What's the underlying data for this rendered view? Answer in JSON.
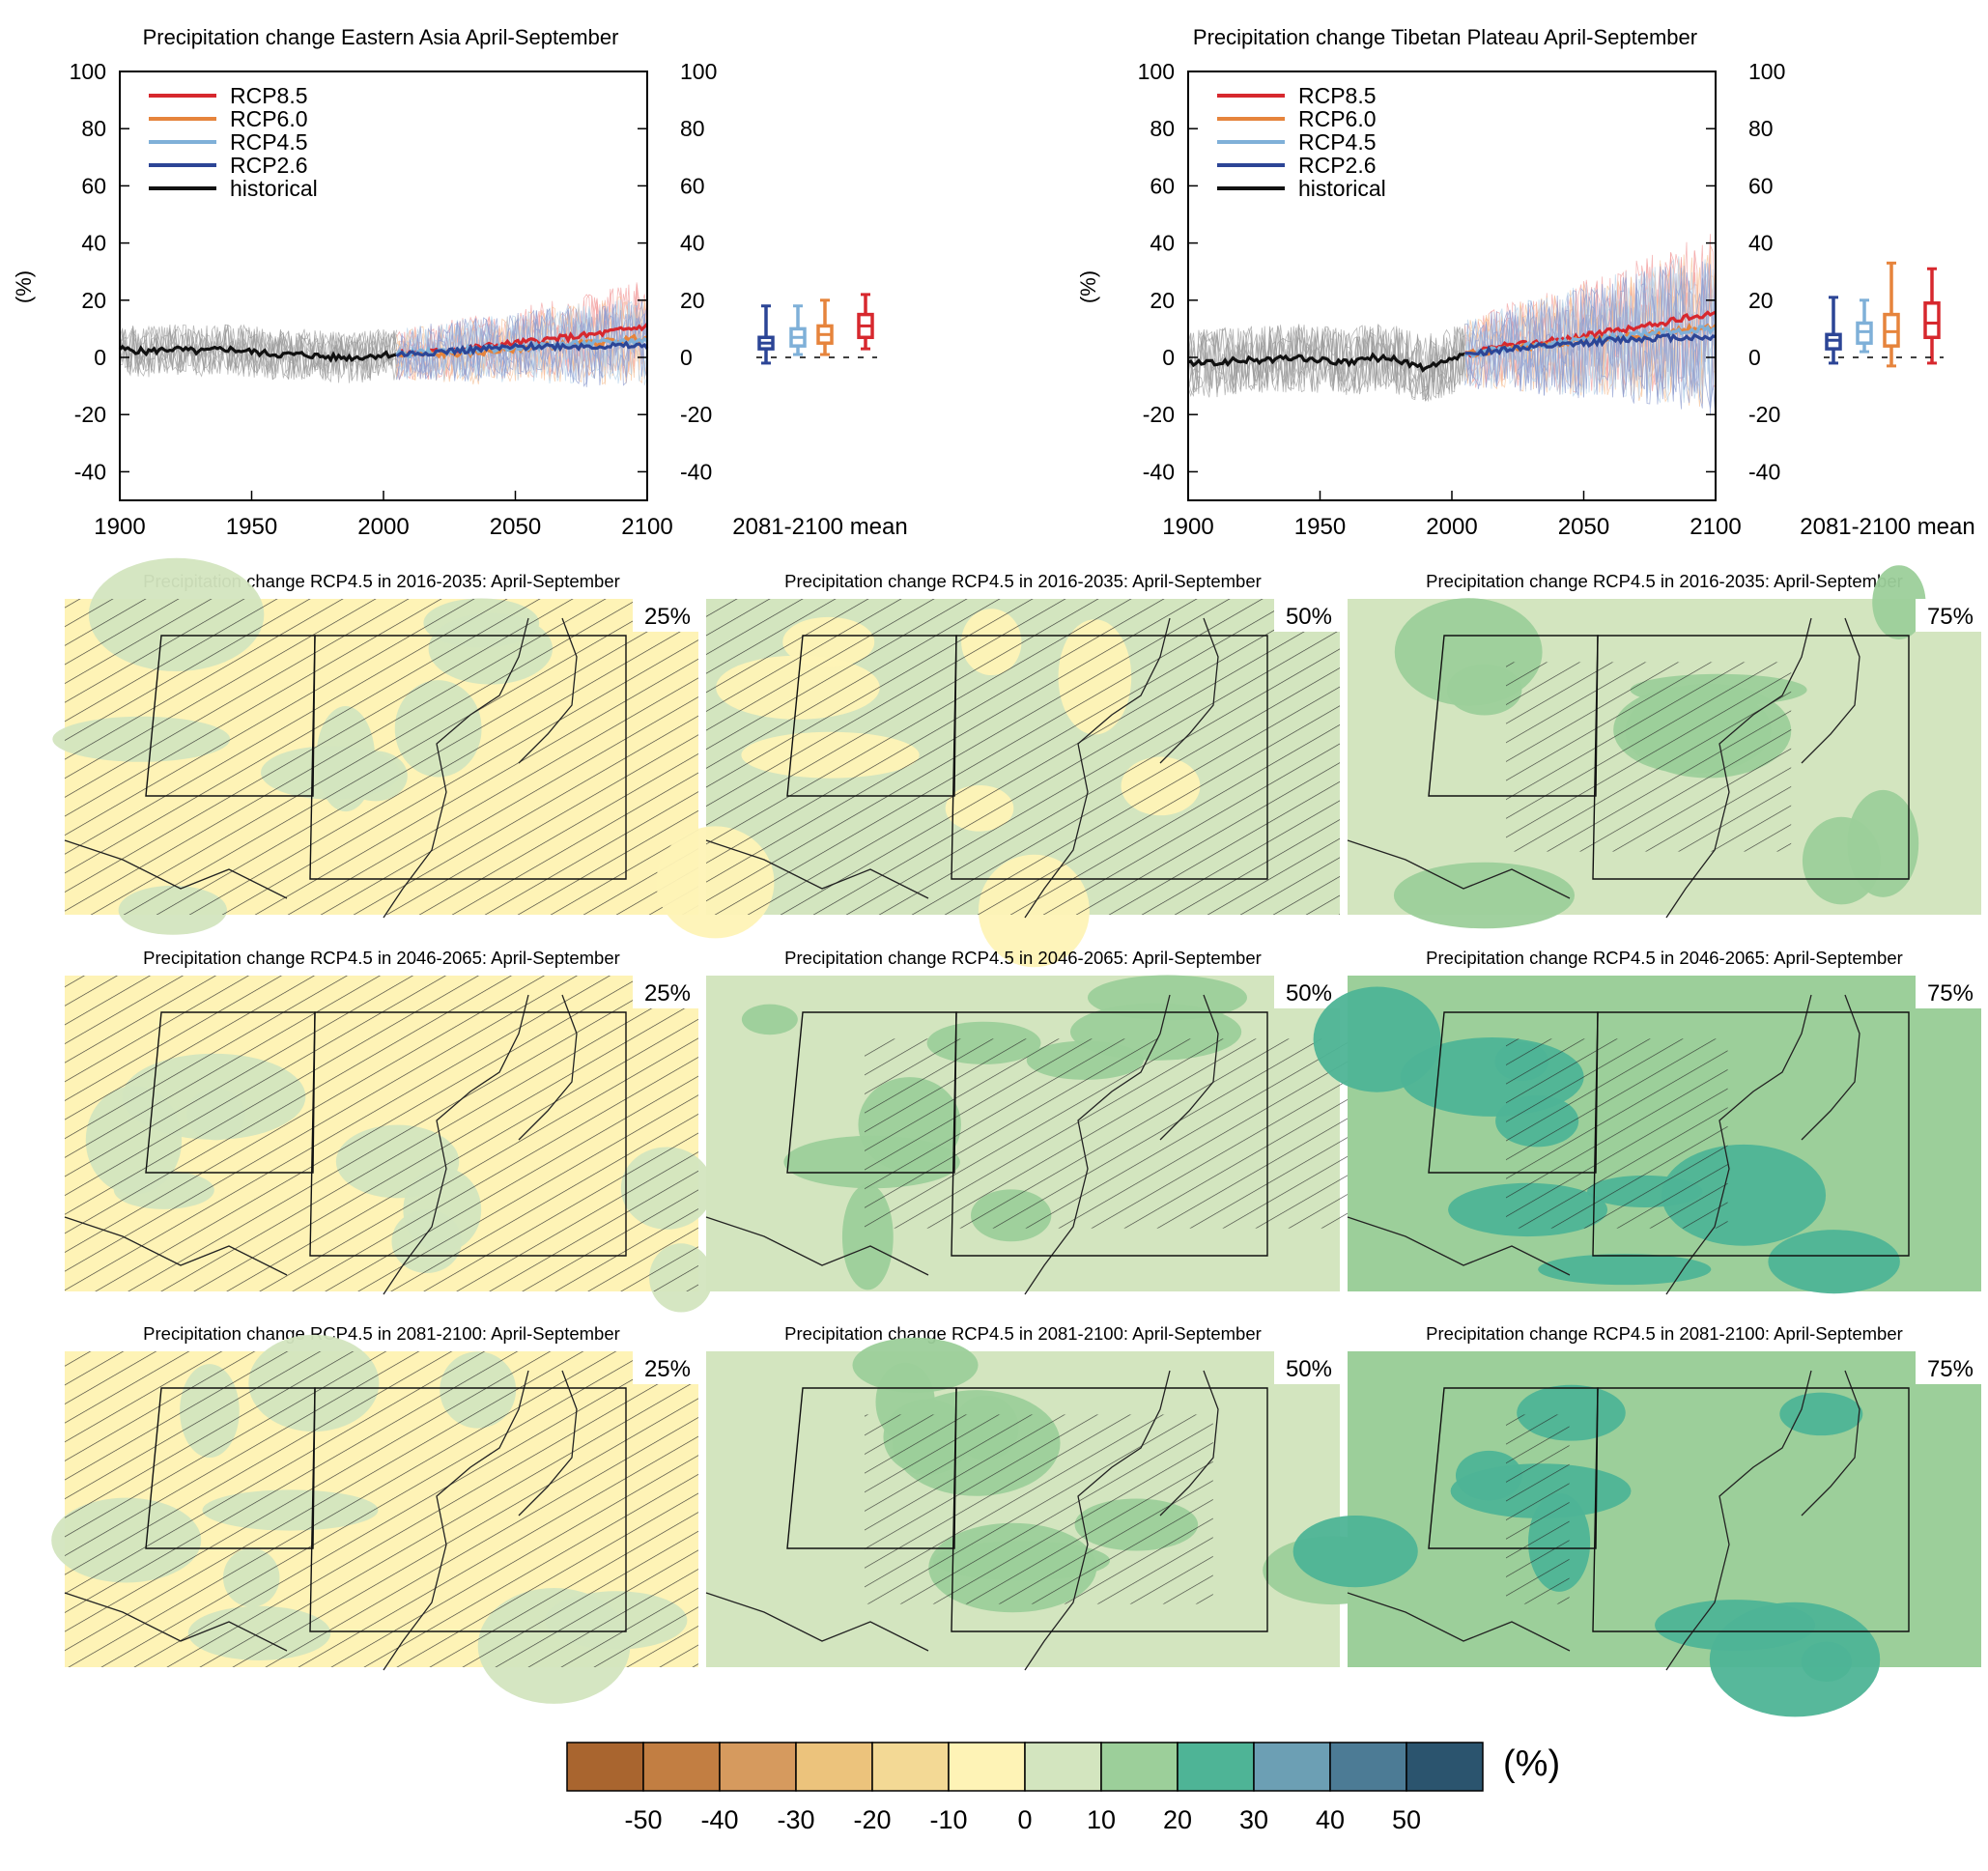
{
  "chart_data": [
    {
      "type": "line",
      "title": "Precipitation change Eastern Asia April-September",
      "ylabel": "(%)",
      "xlim": [
        1900,
        2100
      ],
      "ylim": [
        -50,
        100
      ],
      "x_ticks": [
        "1900",
        "1950",
        "2000",
        "2050",
        "2100"
      ],
      "y_ticks": [
        "100",
        "80",
        "60",
        "40",
        "20",
        "0",
        "-20",
        "-40"
      ],
      "legend": [
        "RCP8.5",
        "RCP6.0",
        "RCP4.5",
        "RCP2.6",
        "historical"
      ],
      "legend_position": "top-left",
      "box_label": "2081-2100 mean",
      "series": [
        {
          "name": "historical",
          "x": [
            1900,
            1910,
            1920,
            1930,
            1940,
            1950,
            1960,
            1970,
            1980,
            1990,
            2000,
            2005
          ],
          "values": [
            3,
            2,
            3,
            2,
            3,
            2,
            1,
            1,
            0,
            0,
            1,
            1
          ]
        },
        {
          "name": "RCP2.6",
          "x": [
            2005,
            2020,
            2040,
            2060,
            2080,
            2100
          ],
          "values": [
            1,
            2,
            3,
            4,
            4,
            4
          ]
        },
        {
          "name": "RCP4.5",
          "x": [
            2005,
            2020,
            2040,
            2060,
            2080,
            2100
          ],
          "values": [
            1,
            2,
            3,
            4,
            5,
            6
          ]
        },
        {
          "name": "RCP6.0",
          "x": [
            2005,
            2020,
            2040,
            2060,
            2080,
            2100
          ],
          "values": [
            1,
            1,
            2,
            4,
            5,
            7
          ]
        },
        {
          "name": "RCP8.5",
          "x": [
            2005,
            2020,
            2040,
            2060,
            2080,
            2100
          ],
          "values": [
            1,
            2,
            4,
            6,
            8,
            11
          ]
        }
      ],
      "boxes": [
        {
          "name": "RCP2.6",
          "min": -2,
          "q1": 3,
          "median": 5,
          "q3": 7,
          "max": 18
        },
        {
          "name": "RCP4.5",
          "min": 1,
          "q1": 4,
          "median": 7,
          "q3": 10,
          "max": 18
        },
        {
          "name": "RCP6.0",
          "min": 1,
          "q1": 5,
          "median": 8,
          "q3": 11,
          "max": 20
        },
        {
          "name": "RCP8.5",
          "min": 3,
          "q1": 7,
          "median": 11,
          "q3": 15,
          "max": 22
        }
      ]
    },
    {
      "type": "line",
      "title": "Precipitation change Tibetan Plateau April-September",
      "ylabel": "(%)",
      "xlim": [
        1900,
        2100
      ],
      "ylim": [
        -50,
        100
      ],
      "x_ticks": [
        "1900",
        "1950",
        "2000",
        "2050",
        "2100"
      ],
      "y_ticks": [
        "100",
        "80",
        "60",
        "40",
        "20",
        "0",
        "-20",
        "-40"
      ],
      "legend": [
        "RCP8.5",
        "RCP6.0",
        "RCP4.5",
        "RCP2.6",
        "historical"
      ],
      "legend_position": "top-left",
      "box_label": "2081-2100 mean",
      "series": [
        {
          "name": "historical",
          "x": [
            1900,
            1910,
            1920,
            1930,
            1940,
            1950,
            1960,
            1970,
            1980,
            1990,
            2000,
            2005
          ],
          "values": [
            -2,
            -2,
            -1,
            -1,
            0,
            -1,
            -2,
            0,
            -1,
            -4,
            -1,
            1
          ]
        },
        {
          "name": "RCP2.6",
          "x": [
            2005,
            2020,
            2040,
            2060,
            2080,
            2100
          ],
          "values": [
            1,
            3,
            4,
            6,
            7,
            7
          ]
        },
        {
          "name": "RCP4.5",
          "x": [
            2005,
            2020,
            2040,
            2060,
            2080,
            2100
          ],
          "values": [
            1,
            3,
            5,
            7,
            9,
            10
          ]
        },
        {
          "name": "RCP6.0",
          "x": [
            2005,
            2020,
            2040,
            2060,
            2080,
            2100
          ],
          "values": [
            1,
            3,
            5,
            7,
            9,
            11
          ]
        },
        {
          "name": "RCP8.5",
          "x": [
            2005,
            2020,
            2040,
            2060,
            2080,
            2100
          ],
          "values": [
            1,
            4,
            6,
            9,
            12,
            16
          ]
        }
      ],
      "boxes": [
        {
          "name": "RCP2.6",
          "min": -2,
          "q1": 3,
          "median": 6,
          "q3": 8,
          "max": 21
        },
        {
          "name": "RCP4.5",
          "min": 2,
          "q1": 5,
          "median": 9,
          "q3": 12,
          "max": 20
        },
        {
          "name": "RCP6.0",
          "min": -3,
          "q1": 4,
          "median": 9,
          "q3": 15,
          "max": 33
        },
        {
          "name": "RCP8.5",
          "min": -2,
          "q1": 7,
          "median": 12,
          "q3": 19,
          "max": 31
        }
      ]
    },
    {
      "type": "heatmap",
      "maps": [
        {
          "title": "Precipitation change RCP4.5 in 2016-2035: April-September",
          "percentile": "25%"
        },
        {
          "title": "Precipitation change RCP4.5 in 2016-2035: April-September",
          "percentile": "50%"
        },
        {
          "title": "Precipitation change RCP4.5 in 2016-2035: April-September",
          "percentile": "75%"
        },
        {
          "title": "Precipitation change RCP4.5 in 2046-2065: April-September",
          "percentile": "25%"
        },
        {
          "title": "Precipitation change RCP4.5 in 2046-2065: April-September",
          "percentile": "50%"
        },
        {
          "title": "Precipitation change RCP4.5 in 2046-2065: April-September",
          "percentile": "75%"
        },
        {
          "title": "Precipitation change RCP4.5 in 2081-2100: April-September",
          "percentile": "25%"
        },
        {
          "title": "Precipitation change RCP4.5 in 2081-2100: April-September",
          "percentile": "50%"
        },
        {
          "title": "Precipitation change RCP4.5 in 2081-2100: April-September",
          "percentile": "75%"
        }
      ],
      "colorbar": {
        "unit": "(%)",
        "ticks": [
          "-50",
          "-40",
          "-30",
          "-20",
          "-10",
          "0",
          "10",
          "20",
          "30",
          "40",
          "50"
        ],
        "colors": [
          "#a9652f",
          "#c27e42",
          "#d69a5e",
          "#ecc37c",
          "#f3d995",
          "#fef3b6",
          "#d3e5bf",
          "#9ccf9a",
          "#4eb496",
          "#6c9fb4",
          "#4c7b95",
          "#2b546e"
        ]
      }
    }
  ],
  "colors": {
    "historical": "#111111",
    "RCP2.6": "#2c4596",
    "RCP4.5": "#7fb0d8",
    "RCP6.0": "#e6843c",
    "RCP8.5": "#d7282e",
    "ensemble_historical": "#9a9a9a"
  }
}
